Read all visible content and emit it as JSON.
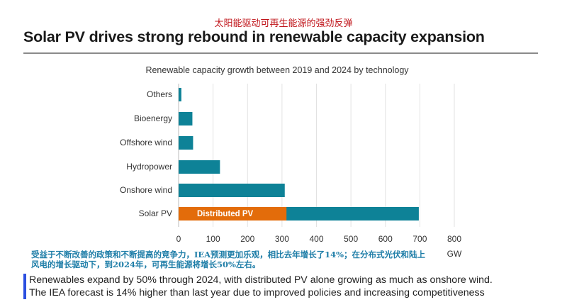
{
  "cn_title": "太阳能驱动可再生能源的强劲反弹",
  "title": "Solar PV drives strong rebound in renewable capacity expansion",
  "chart_data": {
    "type": "bar",
    "orientation": "horizontal",
    "title": "Renewable capacity growth between 2019 and 2024 by technology",
    "xlabel": "GW",
    "categories": [
      "Others",
      "Bioenergy",
      "Offshore wind",
      "Hydropower",
      "Onshore wind",
      "Solar PV"
    ],
    "values": [
      8,
      40,
      42,
      120,
      308,
      697
    ],
    "segment": {
      "category": "Solar PV",
      "label": "Distributed PV",
      "value": 313,
      "color": "#e36c0a"
    },
    "bar_color": "#0e8297",
    "xlim": [
      0,
      800
    ],
    "xticks": [
      0,
      100,
      200,
      300,
      400,
      500,
      600,
      700,
      800
    ],
    "grid": true
  },
  "cn_note": "受益于不断改善的政策和不断提高的竞争力，IEA预测更加乐观，相比去年增长了14%；在分布式光伏和陆上风电的增长驱动下，到2024年，可再生能源将增长50%左右。",
  "en_note": {
    "line1": "Renewables expand by 50% through 2024, with distributed PV alone growing as much as onshore wind.",
    "line2": "The IEA forecast is 14% higher than last year due to improved policies and increasing competitiveness"
  }
}
